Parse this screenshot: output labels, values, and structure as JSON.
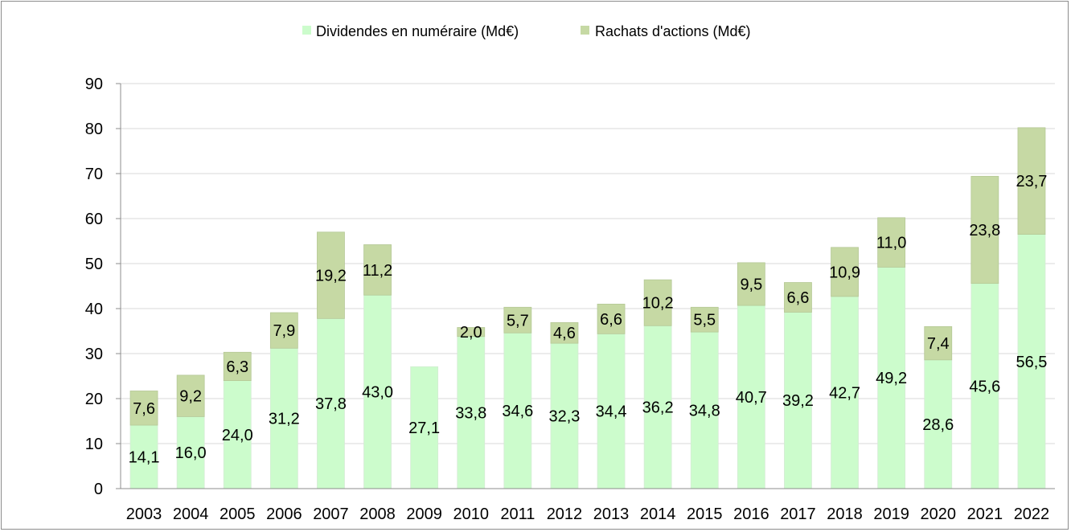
{
  "chart_data": {
    "type": "bar",
    "stacked": true,
    "categories": [
      "2003",
      "2004",
      "2005",
      "2006",
      "2007",
      "2008",
      "2009",
      "2010",
      "2011",
      "2012",
      "2013",
      "2014",
      "2015",
      "2016",
      "2017",
      "2018",
      "2019",
      "2020",
      "2021",
      "2022"
    ],
    "series": [
      {
        "name": "Dividendes en numéraire (Md€)",
        "color": "#ccfccc",
        "values": [
          14.1,
          16.0,
          24.0,
          31.2,
          37.8,
          43.0,
          27.1,
          33.8,
          34.6,
          32.3,
          34.4,
          36.2,
          34.8,
          40.7,
          39.2,
          42.7,
          49.2,
          28.6,
          45.6,
          56.5
        ],
        "labels": [
          "14,1",
          "16,0",
          "24,0",
          "31,2",
          "37,8",
          "43,0",
          "27,1",
          "33,8",
          "34,6",
          "32,3",
          "34,4",
          "36,2",
          "34,8",
          "40,7",
          "39,2",
          "42,7",
          "49,2",
          "28,6",
          "45,6",
          "56,5"
        ]
      },
      {
        "name": "Rachats d'actions (Md€)",
        "color": "#c6d9a4",
        "values": [
          7.6,
          9.2,
          6.3,
          7.9,
          19.2,
          11.2,
          0,
          2.0,
          5.7,
          4.6,
          6.6,
          10.2,
          5.5,
          9.5,
          6.6,
          10.9,
          11.0,
          7.4,
          23.8,
          23.7
        ],
        "labels": [
          "7,6",
          "9,2",
          "6,3",
          "7,9",
          "19,2",
          "11,2",
          "",
          "2,0",
          "5,7",
          "4,6",
          "6,6",
          "10,2",
          "5,5",
          "9,5",
          "6,6",
          "10,9",
          "11,0",
          "7,4",
          "23,8",
          "23,7"
        ]
      }
    ],
    "y_ticks": [
      "0",
      "10",
      "20",
      "30",
      "40",
      "50",
      "60",
      "70",
      "80",
      "90"
    ],
    "ylim": [
      0,
      90
    ],
    "grid": true,
    "legend_position": "top-center",
    "title": "",
    "xlabel": "",
    "ylabel": ""
  }
}
